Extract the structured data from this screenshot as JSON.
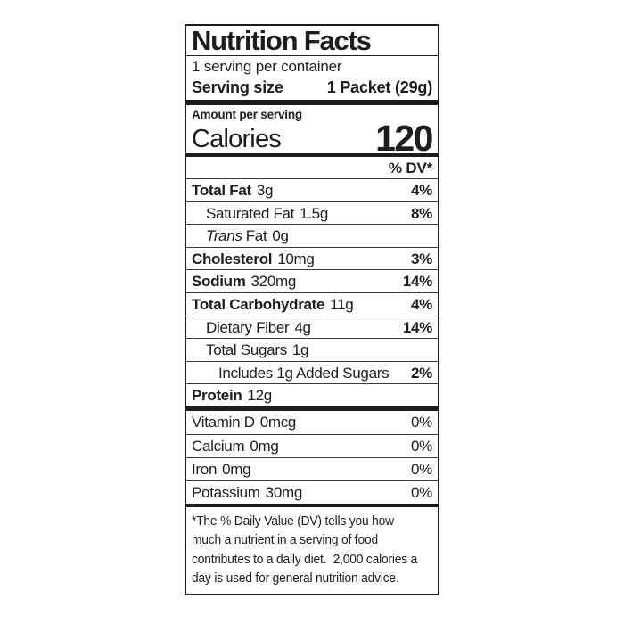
{
  "label": {
    "title": "Nutrition Facts",
    "servings_per_container": "1 serving per container",
    "serving_size": {
      "label": "Serving size",
      "value": "1 Packet (29g)"
    },
    "amount_per_serving": "Amount per serving",
    "calories": {
      "label": "Calories",
      "value": "120"
    },
    "dv_header": "% DV*",
    "rows": [
      {
        "name": "Total Fat",
        "amount": "3g",
        "dv": "4%"
      },
      {
        "name": "Saturated Fat",
        "amount": "1.5g",
        "dv": "8%"
      },
      {
        "name_italic": "Trans",
        "name": "Fat",
        "amount": "0g",
        "dv": ""
      },
      {
        "name": "Cholesterol",
        "amount": "10mg",
        "dv": "3%"
      },
      {
        "name": "Sodium",
        "amount": "320mg",
        "dv": "14%"
      },
      {
        "name": "Total Carbohydrate",
        "amount": "11g",
        "dv": "4%"
      },
      {
        "name": "Dietary Fiber",
        "amount": "4g",
        "dv": "14%"
      },
      {
        "name": "Total Sugars",
        "amount": "1g",
        "dv": ""
      },
      {
        "name": "Includes 1g Added Sugars",
        "amount": "",
        "dv": "2%"
      },
      {
        "name": "Protein",
        "amount": "12g",
        "dv": ""
      }
    ],
    "vitamins": [
      {
        "name": "Vitamin D",
        "amount": "0mcg",
        "dv": "0%"
      },
      {
        "name": "Calcium",
        "amount": "0mg",
        "dv": "0%"
      },
      {
        "name": "Iron",
        "amount": "0mg",
        "dv": "0%"
      },
      {
        "name": "Potassium",
        "amount": "30mg",
        "dv": "0%"
      }
    ],
    "footnote_lines": [
      "*The % Daily Value (DV) tells you how",
      "much a nutrient in a serving of food",
      "contributes to a daily diet.  2,000 calories a",
      "day is used for general nutrition advice."
    ],
    "colors": {
      "text": "#1d1d1b",
      "border": "#1d1d1b",
      "background": "#ffffff"
    }
  }
}
